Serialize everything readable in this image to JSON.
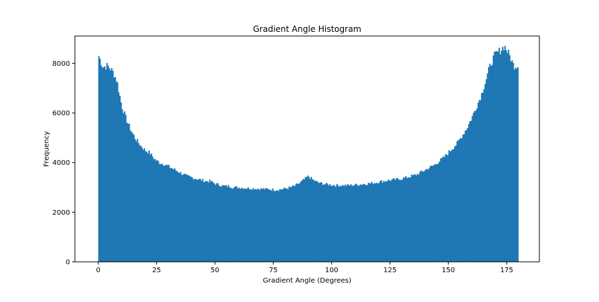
{
  "chart_data": {
    "type": "bar",
    "title": "Gradient Angle Histogram",
    "xlabel": "Gradient Angle (Degrees)",
    "ylabel": "Frequency",
    "xlim": [
      -10,
      189
    ],
    "ylim": [
      0,
      9100
    ],
    "bin_width": 0.5,
    "bar_color": "#1f77b4",
    "grid": false,
    "legend": "none",
    "x_ticks": [
      0,
      25,
      50,
      75,
      100,
      125,
      150,
      175
    ],
    "x_tick_labels": [
      "0",
      "25",
      "50",
      "75",
      "100",
      "125",
      "150",
      "175"
    ],
    "y_ticks": [
      0,
      2000,
      4000,
      6000,
      8000
    ],
    "y_tick_labels": [
      "0",
      "2000",
      "4000",
      "6000",
      "8000"
    ],
    "series": [
      {
        "x": [
          0,
          2,
          4,
          6,
          8,
          10,
          12,
          14,
          16,
          18,
          20,
          22,
          24,
          26,
          28,
          30,
          32,
          34,
          36,
          38,
          40,
          42,
          44,
          46,
          48,
          50,
          52,
          54,
          56,
          58,
          60,
          62,
          64,
          66,
          68,
          70,
          72,
          74,
          76,
          78,
          80,
          82,
          84,
          86,
          88,
          90,
          92,
          94,
          96,
          98,
          100,
          102,
          104,
          106,
          108,
          110,
          112,
          114,
          116,
          118,
          120,
          122,
          124,
          126,
          128,
          130,
          132,
          134,
          136,
          138,
          140,
          142,
          144,
          146,
          148,
          150,
          152,
          154,
          156,
          158,
          160,
          162,
          164,
          166,
          168,
          170,
          172,
          174,
          176,
          178,
          180
        ],
        "values": [
          8350,
          7850,
          7900,
          7700,
          7300,
          6300,
          5750,
          5300,
          4950,
          4700,
          4500,
          4400,
          4150,
          4000,
          3950,
          3850,
          3750,
          3650,
          3550,
          3450,
          3400,
          3350,
          3300,
          3250,
          3250,
          3150,
          3100,
          3050,
          3050,
          3000,
          3000,
          2980,
          2970,
          2960,
          2950,
          2940,
          2930,
          2920,
          2900,
          2920,
          2950,
          2990,
          3050,
          3150,
          3300,
          3450,
          3300,
          3200,
          3150,
          3120,
          3100,
          3080,
          3080,
          3080,
          3090,
          3100,
          3120,
          3140,
          3160,
          3180,
          3220,
          3250,
          3280,
          3300,
          3320,
          3350,
          3400,
          3450,
          3500,
          3600,
          3700,
          3800,
          3900,
          4050,
          4200,
          4400,
          4600,
          4800,
          5100,
          5400,
          5800,
          6250,
          6700,
          7300,
          7950,
          8350,
          8500,
          8700,
          8350,
          7900,
          7900
        ]
      }
    ]
  }
}
